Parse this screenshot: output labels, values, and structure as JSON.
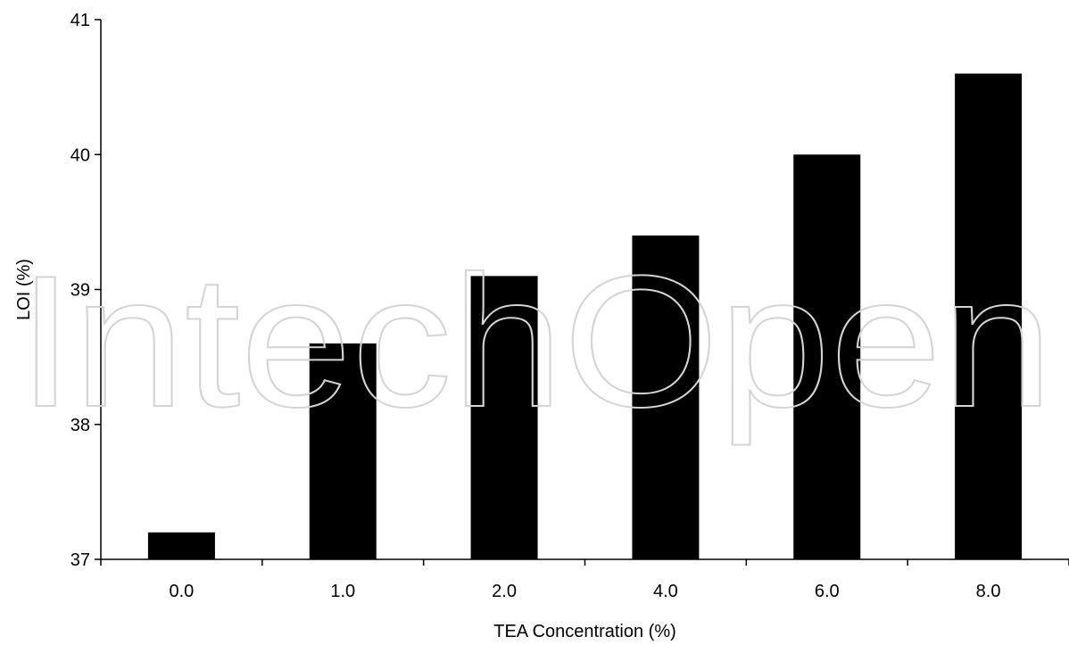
{
  "chart_data": {
    "type": "bar",
    "categories": [
      "0.0",
      "1.0",
      "2.0",
      "4.0",
      "6.0",
      "8.0"
    ],
    "values": [
      37.2,
      38.6,
      39.1,
      39.4,
      40.0,
      40.6
    ],
    "xlabel": "TEA Concentration (%)",
    "ylabel": "LOI (%)",
    "ylim": [
      37,
      41
    ],
    "yticks": [
      "37",
      "38",
      "39",
      "40",
      "41"
    ],
    "bar_color": "#000000",
    "grid": false,
    "legend": "none"
  },
  "watermark": {
    "text": "IntechOpen",
    "color": "#d4d4d4"
  }
}
